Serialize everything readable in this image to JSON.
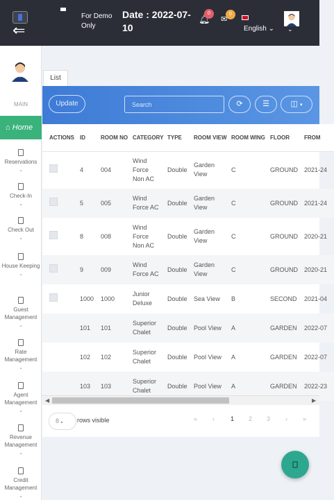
{
  "header": {
    "demo_text": "For Demo Only",
    "date_text": "Date : 2022-07-10",
    "notifications_count": "0",
    "messages_count": "0",
    "language": "English"
  },
  "sidebar": {
    "section_label": "MAIN",
    "home_label": "Home",
    "items": [
      {
        "label": "Reservations",
        "icon": "building-icon"
      },
      {
        "label": "Check-In",
        "icon": "building-icon"
      },
      {
        "label": "Check Out",
        "icon": "building-icon"
      },
      {
        "label": "House Keeping",
        "icon": "building-icon"
      },
      {
        "label": "Guest Management",
        "icon": "building-icon"
      },
      {
        "label": "Rate Management",
        "icon": "building-icon"
      },
      {
        "label": "Agent Management",
        "icon": "building-icon"
      },
      {
        "label": "Revenue Management",
        "icon": "building-icon"
      },
      {
        "label": "Credit Management",
        "icon": "building-icon"
      }
    ]
  },
  "tabs": {
    "list": "List"
  },
  "toolbar": {
    "update_label": "Update",
    "search_placeholder": "Search"
  },
  "table": {
    "headers": [
      "ACTIONS",
      "ID",
      "ROOM NO",
      "CATEGORY",
      "TYPE",
      "ROOM VIEW",
      "ROOM WING",
      "FLOOR",
      "FROM"
    ],
    "rows": [
      {
        "checkbox": true,
        "id": "4",
        "room_no": "004",
        "category": "Wind Force Non AC",
        "type": "Double",
        "view": "Garden View",
        "wing": "C",
        "floor": "GROUND",
        "from": "2021-24"
      },
      {
        "checkbox": true,
        "id": "5",
        "room_no": "005",
        "category": "Wind Force AC",
        "type": "Double",
        "view": "Garden View",
        "wing": "C",
        "floor": "GROUND",
        "from": "2021-24"
      },
      {
        "checkbox": true,
        "id": "8",
        "room_no": "008",
        "category": "Wind Force Non AC",
        "type": "Double",
        "view": "Garden View",
        "wing": "C",
        "floor": "GROUND",
        "from": "2020-21"
      },
      {
        "checkbox": true,
        "id": "9",
        "room_no": "009",
        "category": "Wind Force AC",
        "type": "Double",
        "view": "Garden View",
        "wing": "C",
        "floor": "GROUND",
        "from": "2020-21"
      },
      {
        "checkbox": true,
        "id": "1000",
        "room_no": "1000",
        "category": "Junior Deluxe",
        "type": "Double",
        "view": "Sea View",
        "wing": "B",
        "floor": "SECOND",
        "from": "2021-04"
      },
      {
        "checkbox": false,
        "id": "101",
        "room_no": "101",
        "category": "Superior Chalet",
        "type": "Double",
        "view": "Pool View",
        "wing": "A",
        "floor": "GARDEN",
        "from": "2022-07"
      },
      {
        "checkbox": false,
        "id": "102",
        "room_no": "102",
        "category": "Superior Chalet",
        "type": "Double",
        "view": "Pool View",
        "wing": "A",
        "floor": "GARDEN",
        "from": "2022-07"
      },
      {
        "checkbox": false,
        "id": "103",
        "room_no": "103",
        "category": "Superior Chalet",
        "type": "Double",
        "view": "Pool View",
        "wing": "A",
        "floor": "GARDEN",
        "from": "2022-23"
      }
    ]
  },
  "footer": {
    "per_page": "8",
    "rows_visible_label": "rows visible",
    "pages": [
      "1",
      "2",
      "3"
    ],
    "current_page": "1"
  },
  "colors": {
    "header_bg": "#2b2e37",
    "accent_green": "#3ab27b",
    "toolbar_blue": "#3e7bd6",
    "fab": "#2da88f"
  }
}
